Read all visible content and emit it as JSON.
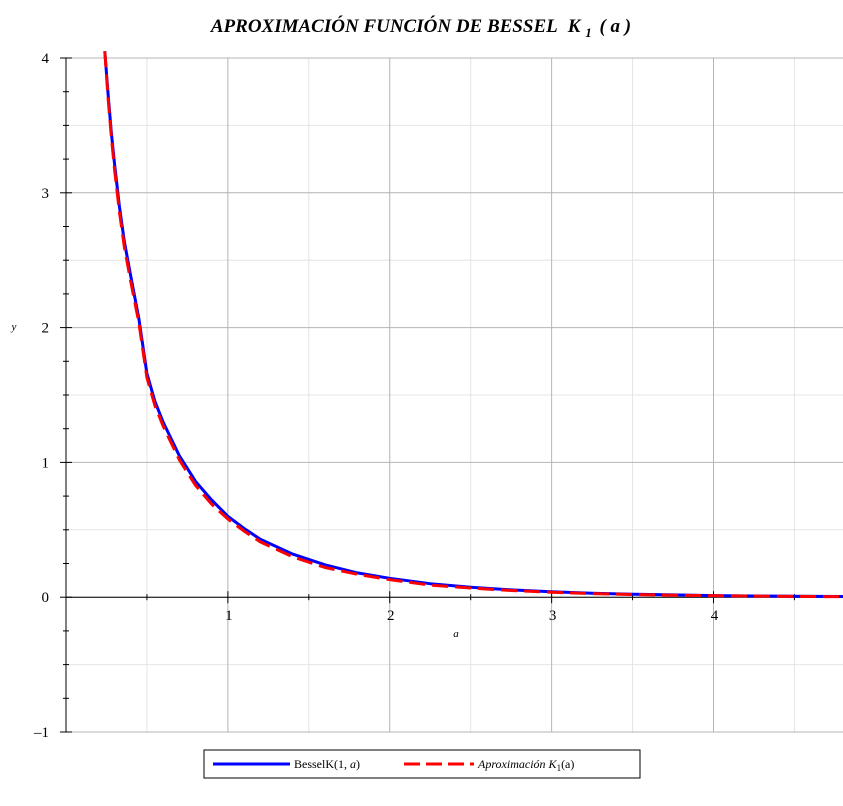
{
  "chart_data": {
    "type": "line",
    "title": "APROXIMACIÓN FUNCIÓN DE BESSEL",
    "title_symbol": "K",
    "title_subscript": "1",
    "title_arg": "( a )",
    "xlabel": "a",
    "ylabel": "y",
    "xlim": [
      0,
      4.8
    ],
    "ylim": [
      -1,
      4
    ],
    "x_ticks": [
      1,
      2,
      3,
      4
    ],
    "y_ticks": [
      -1,
      0,
      1,
      2,
      3,
      4
    ],
    "grid": true,
    "legend_position": "bottom",
    "series": [
      {
        "name": "BesselK(1, a)",
        "name_prefix": "BesselK(1, ",
        "name_var": "a",
        "name_suffix": ")",
        "color": "#0000ff",
        "style": "solid",
        "x": [
          0.24,
          0.26,
          0.28,
          0.3,
          0.33,
          0.36,
          0.4,
          0.45,
          0.5,
          0.55,
          0.6,
          0.7,
          0.8,
          0.9,
          1.0,
          1.1,
          1.2,
          1.4,
          1.6,
          1.8,
          2.0,
          2.25,
          2.5,
          2.75,
          3.0,
          3.25,
          3.5,
          3.75,
          4.0,
          4.25,
          4.5,
          4.8
        ],
        "y": [
          4.05,
          3.73,
          3.45,
          3.21,
          2.9,
          2.64,
          2.38,
          2.07,
          1.66,
          1.45,
          1.3,
          1.05,
          0.86,
          0.72,
          0.6,
          0.51,
          0.43,
          0.32,
          0.24,
          0.18,
          0.14,
          0.1,
          0.074,
          0.054,
          0.04,
          0.03,
          0.022,
          0.017,
          0.012,
          0.009,
          0.007,
          0.005
        ]
      },
      {
        "name": "Aproximación K1(a)",
        "name_prefix": "Aproximación ",
        "name_symbol": "K",
        "name_subscript": "1",
        "name_arg": "(a)",
        "color": "#ff0000",
        "style": "dashed",
        "x": [
          0.24,
          0.26,
          0.28,
          0.3,
          0.33,
          0.36,
          0.4,
          0.45,
          0.5,
          0.55,
          0.6,
          0.7,
          0.8,
          0.9,
          1.0,
          1.1,
          1.2,
          1.4,
          1.6,
          1.8,
          2.0,
          2.25,
          2.5,
          2.75,
          3.0,
          3.25,
          3.5,
          3.75,
          4.0,
          4.25,
          4.5,
          4.8
        ],
        "y": [
          4.05,
          3.7,
          3.42,
          3.17,
          2.86,
          2.6,
          2.34,
          2.04,
          1.63,
          1.42,
          1.27,
          1.02,
          0.83,
          0.69,
          0.58,
          0.49,
          0.41,
          0.3,
          0.22,
          0.17,
          0.13,
          0.09,
          0.068,
          0.05,
          0.037,
          0.027,
          0.02,
          0.015,
          0.011,
          0.008,
          0.006,
          0.004
        ]
      }
    ]
  }
}
